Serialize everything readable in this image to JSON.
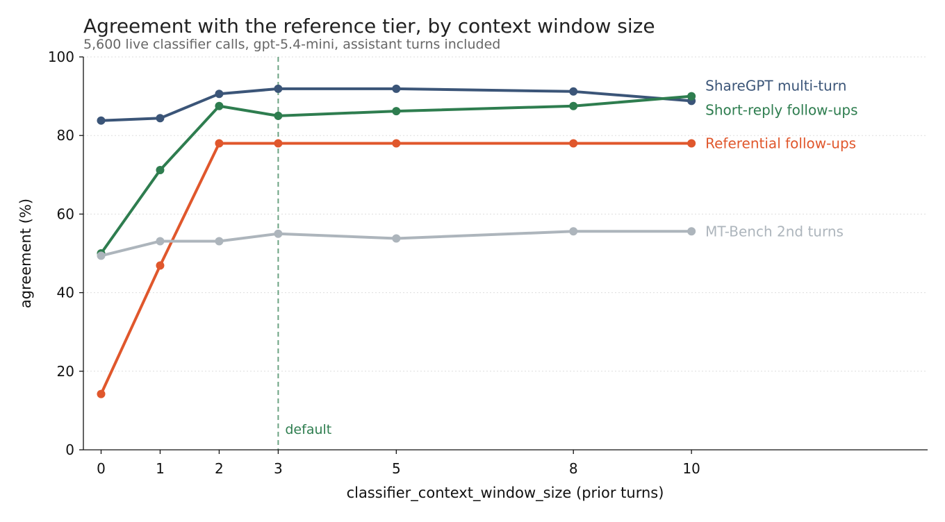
{
  "chart_data": {
    "type": "line",
    "title": "Agreement with the reference tier, by context window size",
    "subtitle": "5,600 live classifier calls, gpt-5.4-mini, assistant turns included",
    "xlabel": "classifier_context_window_size (prior turns)",
    "ylabel": "agreement (%)",
    "x": [
      0,
      1,
      2,
      3,
      5,
      8,
      10
    ],
    "x_ticks": [
      0,
      1,
      2,
      3,
      5,
      8,
      10
    ],
    "y_ticks": [
      0,
      20,
      40,
      60,
      80,
      100
    ],
    "xlim": [
      -0.3,
      14.0
    ],
    "ylim": [
      0,
      100
    ],
    "grid": "horizontal dotted",
    "legend": "labels at line ends (right)",
    "annotation": {
      "x": 3,
      "text": "default",
      "color": "#2e7d4f"
    },
    "series": [
      {
        "name": "ShareGPT multi-turn",
        "color": "#3b5578",
        "values": [
          83.8,
          84.4,
          90.6,
          91.9,
          91.9,
          91.2,
          88.8
        ]
      },
      {
        "name": "Short-reply follow-ups",
        "color": "#2e7d4f",
        "values": [
          50.0,
          71.2,
          87.5,
          85.0,
          86.2,
          87.5,
          90.0
        ]
      },
      {
        "name": "Referential follow-ups",
        "color": "#e0572c",
        "values": [
          14.2,
          46.9,
          78.0,
          78.0,
          78.0,
          78.0,
          78.0
        ]
      },
      {
        "name": "MT-Bench 2nd turns",
        "color": "#adb5bc",
        "values": [
          49.4,
          53.1,
          53.1,
          55.0,
          53.8,
          55.6,
          55.6
        ]
      }
    ]
  }
}
